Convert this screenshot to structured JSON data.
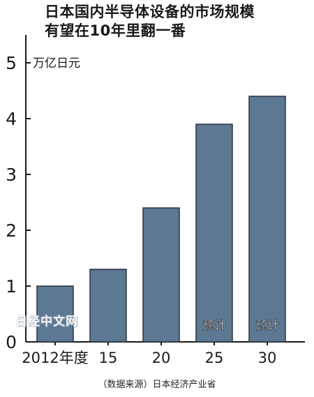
{
  "title": {
    "line1": "日本国内半导体设备的市场规模",
    "line2": "有望在10年里翻一番"
  },
  "watermark": "日经中文网",
  "source": "（数据来源）日本经济产业省",
  "chart_data": {
    "type": "bar",
    "unit_label": "万亿日元",
    "categories": [
      "2012年度",
      "15",
      "20",
      "25",
      "30"
    ],
    "values": [
      1.0,
      1.3,
      2.4,
      3.9,
      4.4
    ],
    "bar_annotations": [
      "",
      "",
      "",
      "预计",
      "预计"
    ],
    "yticks": [
      0,
      1,
      2,
      3,
      4,
      5
    ],
    "ylim": [
      0,
      5.5
    ],
    "grid": false,
    "bar_color": "#5c7893",
    "bar_stroke": "#2b3440"
  }
}
